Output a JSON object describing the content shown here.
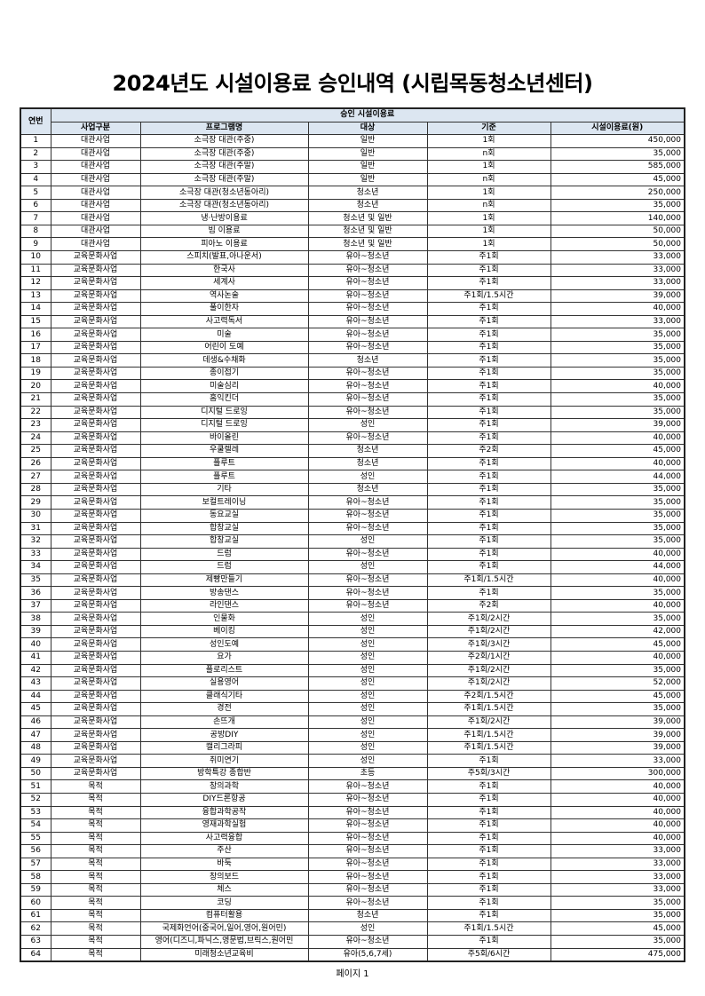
{
  "title": "2024년도 시설이용료 승인내역 (시립목동청소년센터)",
  "header": {
    "no": "연번",
    "group": "승인 시설이용료",
    "columns": [
      "사업구분",
      "프로그램명",
      "대상",
      "기준",
      "시설이용료(원)"
    ]
  },
  "header_fill": "#dce6f1",
  "rows": [
    [
      "1",
      "대관사업",
      "소극장 대관(주중)",
      "일반",
      "1회",
      "450,000"
    ],
    [
      "2",
      "대관사업",
      "소극장 대관(주중)",
      "일반",
      "n회",
      "35,000"
    ],
    [
      "3",
      "대관사업",
      "소극장 대관(주말)",
      "일반",
      "1회",
      "585,000"
    ],
    [
      "4",
      "대관사업",
      "소극장 대관(주말)",
      "일반",
      "n회",
      "45,000"
    ],
    [
      "5",
      "대관사업",
      "소극장 대관(청소년동아리)",
      "청소년",
      "1회",
      "250,000"
    ],
    [
      "6",
      "대관사업",
      "소극장 대관(청소년동아리)",
      "청소년",
      "n회",
      "35,000"
    ],
    [
      "7",
      "대관사업",
      "냉·난방이용료",
      "청소년 및 일반",
      "1회",
      "140,000"
    ],
    [
      "8",
      "대관사업",
      "빔 이용료",
      "청소년 및 일반",
      "1회",
      "50,000"
    ],
    [
      "9",
      "대관사업",
      "피아노 이용료",
      "청소년 및 일반",
      "1회",
      "50,000"
    ],
    [
      "10",
      "교육문화사업",
      "스피치(발표,아나운서)",
      "유아~청소년",
      "주1회",
      "33,000"
    ],
    [
      "11",
      "교육문화사업",
      "한국사",
      "유아~청소년",
      "주1회",
      "33,000"
    ],
    [
      "12",
      "교육문화사업",
      "세계사",
      "유아~청소년",
      "주1회",
      "33,000"
    ],
    [
      "13",
      "교육문화사업",
      "역사논술",
      "유아~청소년",
      "주1회/1.5시간",
      "39,000"
    ],
    [
      "14",
      "교육문화사업",
      "풀이한자",
      "유아~청소년",
      "주1회",
      "40,000"
    ],
    [
      "15",
      "교육문화사업",
      "사고력독서",
      "유아~청소년",
      "주1회",
      "33,000"
    ],
    [
      "16",
      "교육문화사업",
      "미술",
      "유아~청소년",
      "주1회",
      "35,000"
    ],
    [
      "17",
      "교육문화사업",
      "어린이 도예",
      "유아~청소년",
      "주1회",
      "35,000"
    ],
    [
      "18",
      "교육문화사업",
      "데생&수채화",
      "청소년",
      "주1회",
      "35,000"
    ],
    [
      "19",
      "교육문화사업",
      "종이접기",
      "유아~청소년",
      "주1회",
      "35,000"
    ],
    [
      "20",
      "교육문화사업",
      "미술심리",
      "유아~청소년",
      "주1회",
      "40,000"
    ],
    [
      "21",
      "교육문화사업",
      "홈익킨더",
      "유아~청소년",
      "주1회",
      "35,000"
    ],
    [
      "22",
      "교육문화사업",
      "디지털 드로잉",
      "유아~청소년",
      "주1회",
      "35,000"
    ],
    [
      "23",
      "교육문화사업",
      "디지털 드로잉",
      "성인",
      "주1회",
      "39,000"
    ],
    [
      "24",
      "교육문화사업",
      "바이올린",
      "유아~청소년",
      "주1회",
      "40,000"
    ],
    [
      "25",
      "교육문화사업",
      "우쿨렐레",
      "청소년",
      "주2회",
      "45,000"
    ],
    [
      "26",
      "교육문화사업",
      "플루트",
      "청소년",
      "주1회",
      "40,000"
    ],
    [
      "27",
      "교육문화사업",
      "플루트",
      "성인",
      "주1회",
      "44,000"
    ],
    [
      "28",
      "교육문화사업",
      "기타",
      "청소년",
      "주1회",
      "35,000"
    ],
    [
      "29",
      "교육문화사업",
      "보컬트레이닝",
      "유아~청소년",
      "주1회",
      "35,000"
    ],
    [
      "30",
      "교육문화사업",
      "동요교실",
      "유아~청소년",
      "주1회",
      "35,000"
    ],
    [
      "31",
      "교육문화사업",
      "합창교실",
      "유아~청소년",
      "주1회",
      "35,000"
    ],
    [
      "32",
      "교육문화사업",
      "합창교실",
      "성인",
      "주1회",
      "35,000"
    ],
    [
      "33",
      "교육문화사업",
      "드럼",
      "유아~청소년",
      "주1회",
      "40,000"
    ],
    [
      "34",
      "교육문화사업",
      "드럼",
      "성인",
      "주1회",
      "44,000"
    ],
    [
      "35",
      "교육문화사업",
      "제빵만들기",
      "유아~청소년",
      "주1회/1.5시간",
      "40,000"
    ],
    [
      "36",
      "교육문화사업",
      "방송댄스",
      "유아~청소년",
      "주1회",
      "35,000"
    ],
    [
      "37",
      "교육문화사업",
      "라인댄스",
      "유아~청소년",
      "주2회",
      "40,000"
    ],
    [
      "38",
      "교육문화사업",
      "인물화",
      "성인",
      "주1회/2시간",
      "35,000"
    ],
    [
      "39",
      "교육문화사업",
      "베이킹",
      "성인",
      "주1회/2시간",
      "42,000"
    ],
    [
      "40",
      "교육문화사업",
      "성인도예",
      "성인",
      "주1회/3시간",
      "45,000"
    ],
    [
      "41",
      "교육문화사업",
      "요가",
      "성인",
      "주2회/1시간",
      "40,000"
    ],
    [
      "42",
      "교육문화사업",
      "플로리스트",
      "성인",
      "주1회/2시간",
      "35,000"
    ],
    [
      "43",
      "교육문화사업",
      "실용영어",
      "성인",
      "주1회/2시간",
      "52,000"
    ],
    [
      "44",
      "교육문화사업",
      "클래식기타",
      "성인",
      "주2회/1.5시간",
      "45,000"
    ],
    [
      "45",
      "교육문화사업",
      "경전",
      "성인",
      "주1회/1.5시간",
      "35,000"
    ],
    [
      "46",
      "교육문화사업",
      "손뜨개",
      "성인",
      "주1회/2시간",
      "39,000"
    ],
    [
      "47",
      "교육문화사업",
      "공방DIY",
      "성인",
      "주1회/1.5시간",
      "39,000"
    ],
    [
      "48",
      "교육문화사업",
      "캘리그라피",
      "성인",
      "주1회/1.5시간",
      "39,000"
    ],
    [
      "49",
      "교육문화사업",
      "취미연기",
      "성인",
      "주1회",
      "33,000"
    ],
    [
      "50",
      "교육문화사업",
      "방학특강 종합반",
      "초등",
      "주5회/3시간",
      "300,000"
    ],
    [
      "51",
      "목적",
      "창의과학",
      "유아~청소년",
      "주1회",
      "40,000"
    ],
    [
      "52",
      "목적",
      "DIY드론항공",
      "유아~청소년",
      "주1회",
      "40,000"
    ],
    [
      "53",
      "목적",
      "융합과학공작",
      "유아~청소년",
      "주1회",
      "40,000"
    ],
    [
      "54",
      "목적",
      "영재과학실험",
      "유아~청소년",
      "주1회",
      "40,000"
    ],
    [
      "55",
      "목적",
      "사고력융합",
      "유아~청소년",
      "주1회",
      "40,000"
    ],
    [
      "56",
      "목적",
      "주산",
      "유아~청소년",
      "주1회",
      "33,000"
    ],
    [
      "57",
      "목적",
      "바둑",
      "유아~청소년",
      "주1회",
      "33,000"
    ],
    [
      "58",
      "목적",
      "창의보드",
      "유아~청소년",
      "주1회",
      "33,000"
    ],
    [
      "59",
      "목적",
      "체스",
      "유아~청소년",
      "주1회",
      "33,000"
    ],
    [
      "60",
      "목적",
      "코딩",
      "유아~청소년",
      "주1회",
      "35,000"
    ],
    [
      "61",
      "목적",
      "컴퓨터활용",
      "청소년",
      "주1회",
      "35,000"
    ],
    [
      "62",
      "목적",
      "국제화언어(중국어,일어,영어,원어민)",
      "성인",
      "주1회/1.5시간",
      "45,000"
    ],
    [
      "63",
      "목적",
      "영어(디즈니,파닉스,영문법,브릭스,원어민",
      "유아~청소년",
      "주1회",
      "35,000"
    ],
    [
      "64",
      "목적",
      "미래청소년교육비",
      "유아(5,6,7세)",
      "주5회/6시간",
      "475,000"
    ]
  ],
  "footer": "페이지 1"
}
